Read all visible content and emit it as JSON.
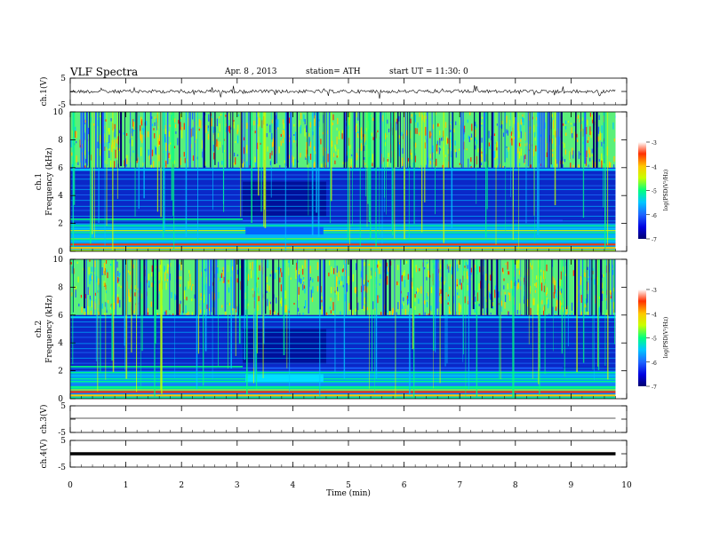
{
  "header": {
    "title": "VLF Spectra",
    "date": "Apr. 8 , 2013",
    "station": "station= ATH",
    "start": "start UT = 11:30: 0"
  },
  "chart_data": {
    "type": "heatmap",
    "xlabel": "Time (min)",
    "xlim": [
      0,
      10
    ],
    "x_ticks": [
      "0",
      "1",
      "2",
      "3",
      "4",
      "5",
      "6",
      "7",
      "8",
      "9",
      "10"
    ],
    "record_end_min": 9.8,
    "panels": [
      {
        "id": "ch1-waveform",
        "type": "line",
        "ylabel": "ch.1(V)",
        "y_ticks": [
          "5",
          "-5"
        ],
        "ylim": [
          -5,
          5
        ],
        "trace": "noisy waveform centred near 0 V with spikes to about ±1.5 V"
      },
      {
        "id": "ch1-spectrogram",
        "type": "heatmap",
        "ylabel": "ch.1",
        "ylabel2": "Frequency (kHz)",
        "y_ticks": [
          "0",
          "2",
          "4",
          "6",
          "8",
          "10"
        ],
        "ylim": [
          0,
          10
        ],
        "colorbar": {
          "label": "log(PSD(V²/Hz)",
          "ticks": [
            "-3",
            "-4",
            "-5",
            "-6",
            "-7"
          ],
          "range": [
            -7,
            -3
          ]
        }
      },
      {
        "id": "ch2-spectrogram",
        "type": "heatmap",
        "ylabel": "ch.2",
        "ylabel2": "Frequency (kHz)",
        "y_ticks": [
          "0",
          "2",
          "4",
          "6",
          "8",
          "10"
        ],
        "ylim": [
          0,
          10
        ],
        "colorbar": {
          "label": "log(PSD(V²/Hz)",
          "ticks": [
            "-3",
            "-4",
            "-5",
            "-6",
            "-7"
          ],
          "range": [
            -7,
            -3
          ]
        }
      },
      {
        "id": "ch3-waveform",
        "type": "line",
        "ylabel": "ch.3(V)",
        "y_ticks": [
          "5",
          "-5"
        ],
        "ylim": [
          -5,
          5
        ],
        "trace": "nearly flat line at about 0 V"
      },
      {
        "id": "ch4-waveform",
        "type": "line",
        "ylabel": "ch.4(V)",
        "y_ticks": [
          "5",
          "-5"
        ],
        "ylim": [
          -5,
          5
        ],
        "trace": "thick flat line at about 0 V"
      }
    ],
    "colormap": [
      "#000070",
      "#0000e0",
      "#1e64ff",
      "#00c8ff",
      "#00ff80",
      "#c8ff00",
      "#ffc800",
      "#ff3000",
      "#c80000"
    ]
  }
}
